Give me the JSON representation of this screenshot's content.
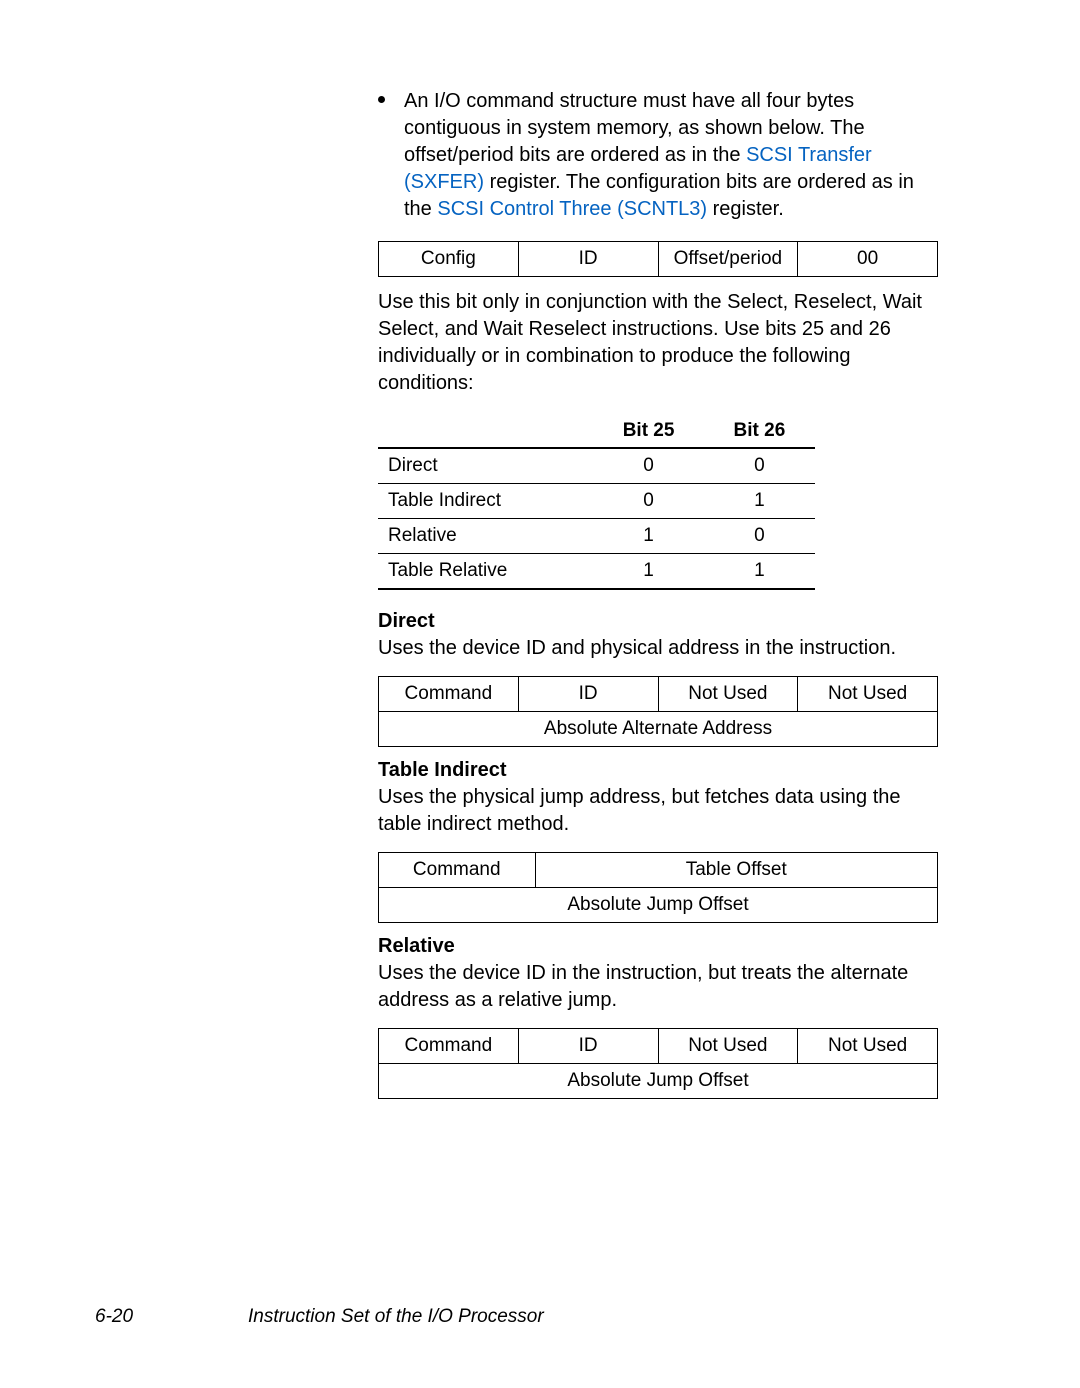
{
  "bullet": {
    "part1": "An I/O command structure must have all four bytes contiguous in system memory, as shown below. The offset/period bits are ordered as in the ",
    "link1": "SCSI Transfer (SXFER)",
    "part2": " register. The configuration bits are ordered as in the ",
    "link2": "SCSI Control Three (SCNTL3)",
    "part3": " register."
  },
  "layout_table": {
    "cells": [
      "Config",
      "ID",
      "Offset/period",
      "00"
    ]
  },
  "para1": "Use this bit only in conjunction with the Select, Reselect, Wait Select, and Wait Reselect instructions. Use bits 25 and 26 individually or in combination to produce the following conditions:",
  "bits": {
    "headers": [
      "",
      "Bit 25",
      "Bit 26"
    ],
    "rows": [
      [
        "Direct",
        "0",
        "0"
      ],
      [
        "Table Indirect",
        "0",
        "1"
      ],
      [
        "Relative",
        "1",
        "0"
      ],
      [
        "Table Relative",
        "1",
        "1"
      ]
    ]
  },
  "sections": {
    "direct": {
      "title": "Direct",
      "desc": "Uses the device ID and physical address in the instruction.",
      "row1": [
        "Command",
        "ID",
        "Not Used",
        "Not Used"
      ],
      "row2": "Absolute Alternate Address"
    },
    "table_indirect": {
      "title": "Table Indirect",
      "desc": "Uses the physical jump address, but fetches data using the table indirect method.",
      "row1_c1": "Command",
      "row1_c2": "Table Offset",
      "row2": "Absolute Jump Offset"
    },
    "relative": {
      "title": "Relative",
      "desc": "Uses the device ID in the instruction, but treats the alternate address as a relative jump.",
      "row1": [
        "Command",
        "ID",
        "Not Used",
        "Not Used"
      ],
      "row2": "Absolute Jump Offset"
    }
  },
  "footer": {
    "page": "6-20",
    "title": "Instruction Set of the I/O Processor"
  }
}
